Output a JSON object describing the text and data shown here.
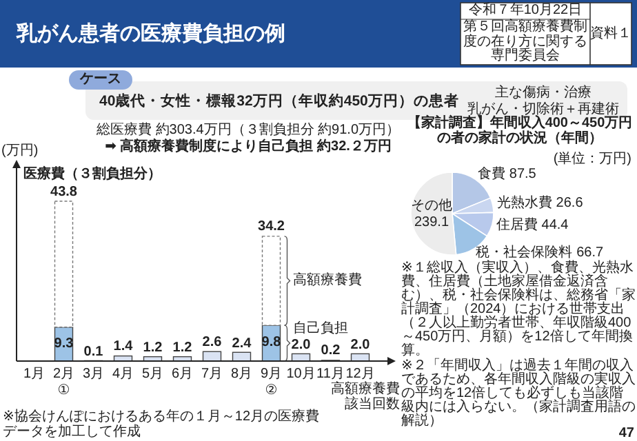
{
  "chart_data": [
    {
      "type": "other",
      "title": "乳がん患者の医療費負担の例",
      "annotations": [
        "令和７年10月22日",
        "第５回高額療養費制度の在り方に関する専門委員会",
        "資料１",
        "ケース",
        "40歳代・女性・標報32万円（年収約450万円）の患者",
        "主な傷病・治療",
        "乳がん・切除術＋再建術",
        "総医療費 約303.4万円（３割負担分 約91.0万円）",
        "➡ 高額療養費制度により自己負担 約32.２万円"
      ]
    },
    {
      "type": "bar",
      "stacked": true,
      "ylabel": "(万円)",
      "xlabel": "高額療養費該当回数",
      "categories": [
        "1月",
        "2月①",
        "3月",
        "4月",
        "5月",
        "6月",
        "7月",
        "8月",
        "9月②",
        "10月",
        "11月",
        "12月"
      ],
      "series": [
        {
          "name": "自己負担",
          "colors": [
            null,
            "#9dc3e6",
            "#dae3f3",
            "#dae3f3",
            "#dae3f3",
            "#dae3f3",
            "#dae3f3",
            "#dae3f3",
            "#9dc3e6",
            "#dae3f3",
            "#dae3f3",
            "#dae3f3"
          ],
          "values": [
            null,
            9.3,
            0.1,
            1.4,
            1.2,
            1.2,
            2.6,
            2.4,
            9.8,
            2.0,
            0.2,
            2.0
          ],
          "value_labels": [
            null,
            "9.3",
            "0.1",
            "1.4",
            "1.2",
            "1.2",
            "2.6",
            "2.4",
            "9.8",
            "2.0",
            "0.2",
            "2.0"
          ]
        },
        {
          "name": "高額療養費",
          "color": "#ffffff",
          "line_style": "dashed",
          "values": [
            null,
            34.5,
            null,
            null,
            null,
            null,
            null,
            null,
            24.4,
            null,
            null,
            null
          ]
        }
      ],
      "totals": [
        null,
        "43.8",
        null,
        null,
        null,
        null,
        null,
        null,
        "34.2",
        null,
        null,
        null
      ],
      "annotations": [
        {
          "text": "医療費（３割負担分）",
          "x": "2月①",
          "y": 43.8
        },
        "※協会けんぽにおけるある年の１月～12月の医療費データを加工して作成"
      ]
    },
    {
      "type": "pie",
      "title": "【家計調査】年間収入400～450万円の者の家計の状況（年間）",
      "subtitle": "(単位：万円)",
      "categories": [
        "食費",
        "光熱水費",
        "住居費",
        "税・社会保険料",
        "その他"
      ],
      "values": [
        87.5,
        26.6,
        44.4,
        66.7,
        239.1
      ],
      "colors": [
        "#b4c7e7",
        "#c9d6f0",
        "#b8c9ec",
        "#9dc3e6",
        "#ececec"
      ],
      "data_labels": true,
      "annotations": [
        "※１総収入（実収入）、食費、光熱水費、住居費（土地家屋借金返済含む）、税・社会保険料は、総務省「家計調査」（2024）における世帯支出（２人以上勤労者世帯、年収階級400～450万円、月額）を12倍して年間換算。",
        "※２「年間収入」は過去１年間の収入であるため、各年間収入階級の実収入の平均を12倍しても必ずしも当該階級内には入らない。（家計調査用語の解説）",
        "47"
      ]
    }
  ]
}
